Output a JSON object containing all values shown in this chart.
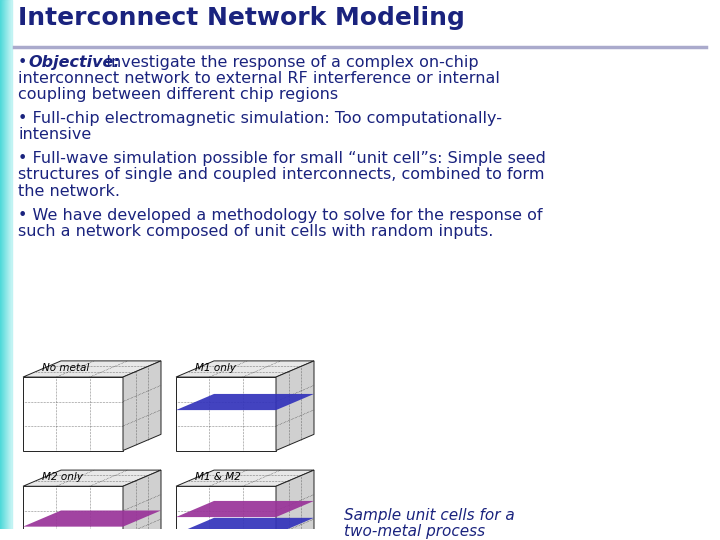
{
  "title": "Interconnect Network Modeling",
  "title_color": "#1a237e",
  "title_fontsize": 18,
  "background_color": "#ffffff",
  "text_color": "#1a237e",
  "text_fontsize": 11.5,
  "bullet1_line1": "• Objective:  Investigate the response of a complex on-chip",
  "bullet1_line2": "interconnect network to external RF interference or internal",
  "bullet1_line3": "coupling between different chip regions",
  "bullet2_line1": "• Full-chip electromagnetic simulation: Too computationally-",
  "bullet2_line2": "intensive",
  "bullet3_line1": "• Full-wave simulation possible for small “unit cell”s: Simple seed",
  "bullet3_line2": "structures of single and coupled interconnects, combined to form",
  "bullet3_line3": "the network.",
  "bullet4_line1": "• We have developed a methodology to solve for the response of",
  "bullet4_line2": "such a network composed of unit cells with random inputs.",
  "caption_line1": "Sample unit cells for a",
  "caption_line2": "two-metal process",
  "caption_color": "#1a237e",
  "caption_fontsize": 11,
  "divider_color": "#aaaacc",
  "cube_labels": [
    "No metal",
    "M1 only",
    "M2 only",
    "M1 & M2"
  ],
  "metal1_color": "#3333bb",
  "metal2_color": "#993399",
  "cube_line_color": "#222222",
  "left_bar_teal": "#4dd9d9",
  "left_bar_light": "#b0f0f0"
}
